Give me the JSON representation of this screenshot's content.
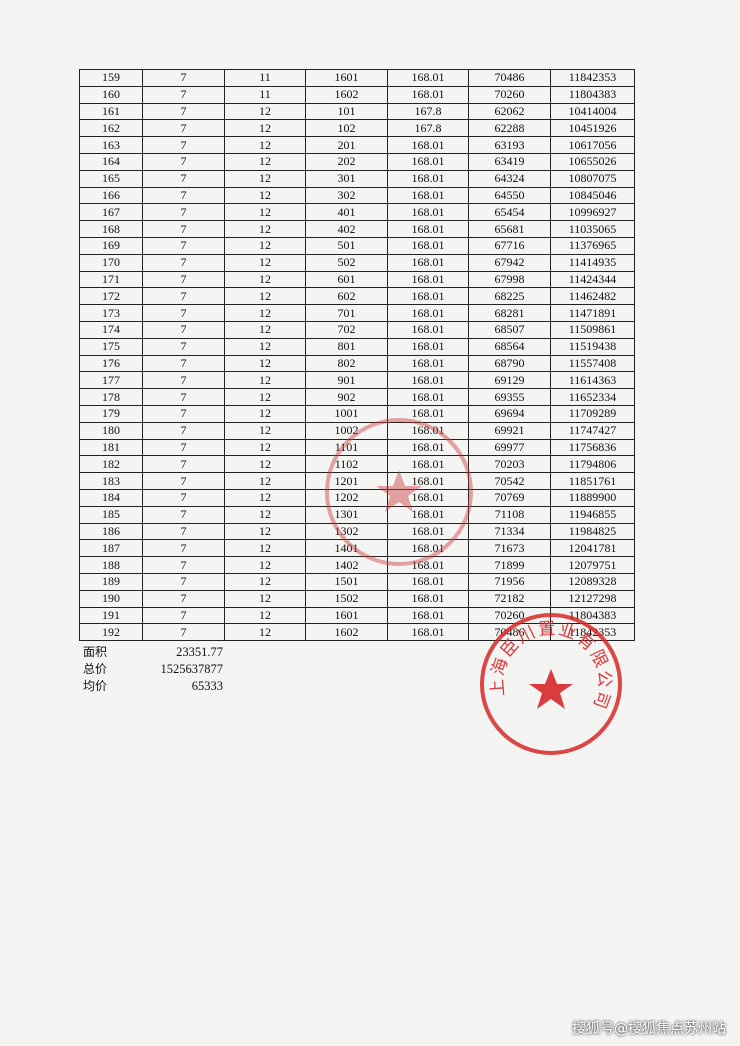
{
  "table": {
    "rows": [
      [
        "159",
        "7",
        "11",
        "1601",
        "168.01",
        "70486",
        "11842353"
      ],
      [
        "160",
        "7",
        "11",
        "1602",
        "168.01",
        "70260",
        "11804383"
      ],
      [
        "161",
        "7",
        "12",
        "101",
        "167.8",
        "62062",
        "10414004"
      ],
      [
        "162",
        "7",
        "12",
        "102",
        "167.8",
        "62288",
        "10451926"
      ],
      [
        "163",
        "7",
        "12",
        "201",
        "168.01",
        "63193",
        "10617056"
      ],
      [
        "164",
        "7",
        "12",
        "202",
        "168.01",
        "63419",
        "10655026"
      ],
      [
        "165",
        "7",
        "12",
        "301",
        "168.01",
        "64324",
        "10807075"
      ],
      [
        "166",
        "7",
        "12",
        "302",
        "168.01",
        "64550",
        "10845046"
      ],
      [
        "167",
        "7",
        "12",
        "401",
        "168.01",
        "65454",
        "10996927"
      ],
      [
        "168",
        "7",
        "12",
        "402",
        "168.01",
        "65681",
        "11035065"
      ],
      [
        "169",
        "7",
        "12",
        "501",
        "168.01",
        "67716",
        "11376965"
      ],
      [
        "170",
        "7",
        "12",
        "502",
        "168.01",
        "67942",
        "11414935"
      ],
      [
        "171",
        "7",
        "12",
        "601",
        "168.01",
        "67998",
        "11424344"
      ],
      [
        "172",
        "7",
        "12",
        "602",
        "168.01",
        "68225",
        "11462482"
      ],
      [
        "173",
        "7",
        "12",
        "701",
        "168.01",
        "68281",
        "11471891"
      ],
      [
        "174",
        "7",
        "12",
        "702",
        "168.01",
        "68507",
        "11509861"
      ],
      [
        "175",
        "7",
        "12",
        "801",
        "168.01",
        "68564",
        "11519438"
      ],
      [
        "176",
        "7",
        "12",
        "802",
        "168.01",
        "68790",
        "11557408"
      ],
      [
        "177",
        "7",
        "12",
        "901",
        "168.01",
        "69129",
        "11614363"
      ],
      [
        "178",
        "7",
        "12",
        "902",
        "168.01",
        "69355",
        "11652334"
      ],
      [
        "179",
        "7",
        "12",
        "1001",
        "168.01",
        "69694",
        "11709289"
      ],
      [
        "180",
        "7",
        "12",
        "1002",
        "168.01",
        "69921",
        "11747427"
      ],
      [
        "181",
        "7",
        "12",
        "1101",
        "168.01",
        "69977",
        "11756836"
      ],
      [
        "182",
        "7",
        "12",
        "1102",
        "168.01",
        "70203",
        "11794806"
      ],
      [
        "183",
        "7",
        "12",
        "1201",
        "168.01",
        "70542",
        "11851761"
      ],
      [
        "184",
        "7",
        "12",
        "1202",
        "168.01",
        "70769",
        "11889900"
      ],
      [
        "185",
        "7",
        "12",
        "1301",
        "168.01",
        "71108",
        "11946855"
      ],
      [
        "186",
        "7",
        "12",
        "1302",
        "168.01",
        "71334",
        "11984825"
      ],
      [
        "187",
        "7",
        "12",
        "1401",
        "168.01",
        "71673",
        "12041781"
      ],
      [
        "188",
        "7",
        "12",
        "1402",
        "168.01",
        "71899",
        "12079751"
      ],
      [
        "189",
        "7",
        "12",
        "1501",
        "168.01",
        "71956",
        "12089328"
      ],
      [
        "190",
        "7",
        "12",
        "1502",
        "168.01",
        "72182",
        "12127298"
      ],
      [
        "191",
        "7",
        "12",
        "1601",
        "168.01",
        "70260",
        "11804383"
      ],
      [
        "192",
        "7",
        "12",
        "1602",
        "168.01",
        "70486",
        "11842353"
      ]
    ]
  },
  "summary": {
    "area_label": "面积",
    "area_value": "23351.77",
    "total_label": "总价",
    "total_value": "1525637877",
    "avg_label": "均价",
    "avg_value": "65333"
  },
  "stamp": {
    "text": "上海臣川置业有限公司",
    "color": "#d62828"
  },
  "watermark": "搜狐号@搜狐焦点苏州站"
}
